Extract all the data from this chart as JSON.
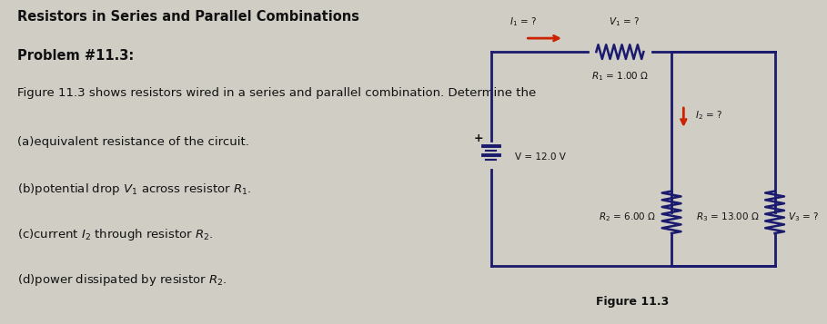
{
  "title_line1": "Resistors in Series and Parallel Combinations",
  "title_line2": "Problem #11.3:",
  "body_text": [
    "Figure 11.3 shows resistors wired in a series and parallel combination. Determine the",
    "(a)equivalent resistance of the circuit.",
    "(b)potential drop $V_1$ across resistor $R_1$.",
    "(c)current $I_2$ through resistor $R_2$.",
    "(d)power dissipated by resistor $R_2$."
  ],
  "figure_label": "Figure 11.3",
  "bg_color": "#d0cdc5",
  "circuit_bg": "#eeeae4",
  "wire_color": "#1a1a6e",
  "resistor_color": "#1a1a6e",
  "arrow_color": "#cc2200",
  "text_color": "#111111",
  "circuit": {
    "battery_label": "V = 12.0 V",
    "battery_plus": "+",
    "R1_label": "$R_1$ = 1.00 Ω",
    "R2_label": "$R_2$ = 6.00 Ω",
    "R3_label": "$R_3$ = 13.00 Ω",
    "I1_label": "$I_1$ = ?",
    "I2_label": "$I_2$ = ?",
    "V1_label": "$V_1$ = ?",
    "V3_label": "$V_3$ = ?"
  }
}
